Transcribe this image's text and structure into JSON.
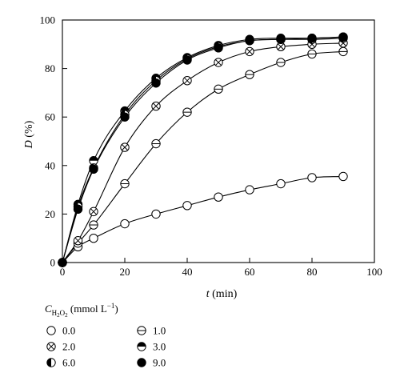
{
  "chart_data": {
    "type": "scatter",
    "xlabel_var": "t",
    "xlabel_unit": " (min)",
    "ylabel_var": "D",
    "ylabel_unit": " (%)",
    "xlim": [
      0,
      100
    ],
    "ylim": [
      0,
      100
    ],
    "xticks": [
      0,
      20,
      40,
      60,
      80,
      100
    ],
    "yticks": [
      0,
      20,
      40,
      60,
      80,
      100
    ],
    "grid": false,
    "legend_placement": "bottom-left, below axes",
    "legend_title": {
      "var": "C",
      "sub_main": "H",
      "sub_1": "2",
      "sub_mid": "O",
      "sub_2": "2",
      "unit_a": " (mmol L",
      "unit_sup": "−1",
      "unit_b": ")"
    },
    "series": [
      {
        "name": "0.0",
        "marker": "open-circle",
        "x": [
          0,
          5,
          10,
          20,
          30,
          40,
          50,
          60,
          70,
          80,
          90
        ],
        "y": [
          0,
          6.5,
          10,
          16,
          20,
          23.5,
          27,
          30,
          32.5,
          35,
          35.5
        ]
      },
      {
        "name": "1.0",
        "marker": "circle-horizontal-line",
        "x": [
          0,
          5,
          10,
          20,
          30,
          40,
          50,
          60,
          70,
          80,
          90
        ],
        "y": [
          0,
          8,
          15.5,
          32.5,
          49,
          62,
          71.5,
          77.5,
          82.5,
          86,
          87
        ]
      },
      {
        "name": "2.0",
        "marker": "circle-cross",
        "x": [
          0,
          5,
          10,
          20,
          30,
          40,
          50,
          60,
          70,
          80,
          90
        ],
        "y": [
          0,
          9,
          21,
          47.5,
          64.5,
          75,
          82.5,
          87,
          89,
          90,
          90.5
        ]
      },
      {
        "name": "3.0",
        "marker": "circle-top-half-filled",
        "x": [
          0,
          5,
          10,
          20,
          30,
          40,
          50,
          60,
          70,
          80,
          90
        ],
        "y": [
          0,
          24,
          42,
          62.5,
          76,
          84.5,
          89.5,
          92,
          92.5,
          92.5,
          93
        ]
      },
      {
        "name": "6.0",
        "marker": "circle-left-half-filled",
        "x": [
          0,
          5,
          10,
          20,
          30,
          40,
          50,
          60,
          70,
          80,
          90
        ],
        "y": [
          0,
          23,
          39,
          61,
          75,
          84,
          89,
          91.5,
          92,
          92,
          92.5
        ]
      },
      {
        "name": "9.0",
        "marker": "filled-circle",
        "x": [
          0,
          5,
          10,
          20,
          30,
          40,
          50,
          60,
          70,
          80,
          90
        ],
        "y": [
          0,
          22,
          38.5,
          60,
          74,
          83.5,
          88.5,
          91.5,
          92,
          92.5,
          93
        ]
      }
    ]
  }
}
